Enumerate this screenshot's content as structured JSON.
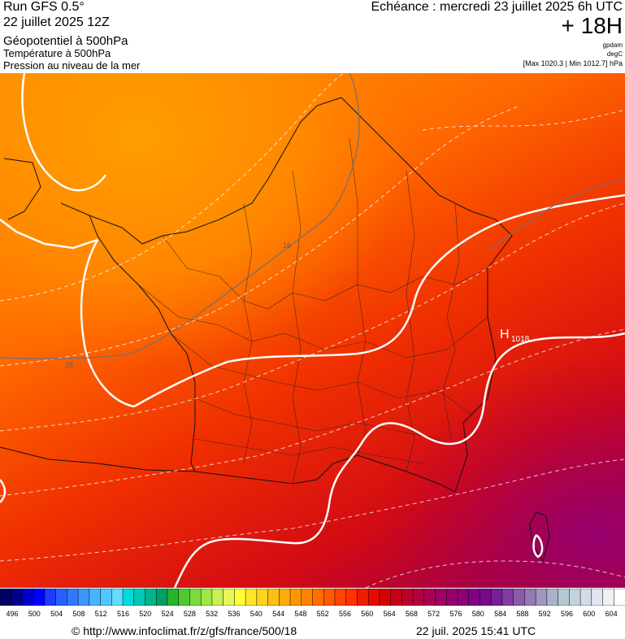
{
  "header": {
    "run": "Run GFS 0.5°",
    "run_date": "22 juillet 2025 12Z",
    "field_main": "Géopotentiel à 500hPa",
    "field_temp": "Température à 500hPa",
    "field_pressure": "Pression au niveau de la mer",
    "echeance": "Echéance : mercredi 23 juillet 2025 6h UTC",
    "lead_time": "+ 18H",
    "unit_geo": "gpdam",
    "unit_temp": "degC",
    "pressure_range": "[Max 1020.3 | Min 1012.7] hPa"
  },
  "map": {
    "contour_labels": [
      "16",
      "16"
    ],
    "high_marker": "H",
    "high_value": "1018"
  },
  "legend": {
    "ticks": [
      "496",
      "500",
      "504",
      "508",
      "512",
      "516",
      "520",
      "524",
      "528",
      "532",
      "536",
      "540",
      "544",
      "548",
      "552",
      "556",
      "560",
      "564",
      "568",
      "572",
      "576",
      "580",
      "584",
      "588",
      "592",
      "596",
      "600",
      "604"
    ],
    "colors": [
      "#000066",
      "#00008b",
      "#0000cd",
      "#0000ff",
      "#1e3cff",
      "#2860ff",
      "#3278ff",
      "#3c96ff",
      "#46b4ff",
      "#50c8ff",
      "#64dcff",
      "#00dcdc",
      "#00c8b4",
      "#00b48c",
      "#00a064",
      "#28b428",
      "#50c832",
      "#78dc3c",
      "#a0e646",
      "#c8f050",
      "#e6f55a",
      "#ffff32",
      "#ffe628",
      "#ffd21e",
      "#ffbe14",
      "#ffaa0a",
      "#ff9600",
      "#ff8200",
      "#ff6e00",
      "#ff5a00",
      "#ff4600",
      "#ff3200",
      "#f01e00",
      "#e60a00",
      "#d70000",
      "#c80014",
      "#be0028",
      "#b4003c",
      "#aa0050",
      "#a00064",
      "#96006e",
      "#8c0078",
      "#820082",
      "#780a8c",
      "#781e96",
      "#823ca0",
      "#8c5aaa",
      "#9678b4",
      "#a096be",
      "#aab4c8",
      "#b4c8d2",
      "#c3d2dc",
      "#d2dce6",
      "#e1e6f0",
      "#f0f0f5",
      "#ffffff"
    ]
  },
  "footer": {
    "url": "© http://www.infoclimat.fr/z/gfs/france/500/18",
    "timestamp": "22 juil. 2025 15:41 UTC"
  }
}
